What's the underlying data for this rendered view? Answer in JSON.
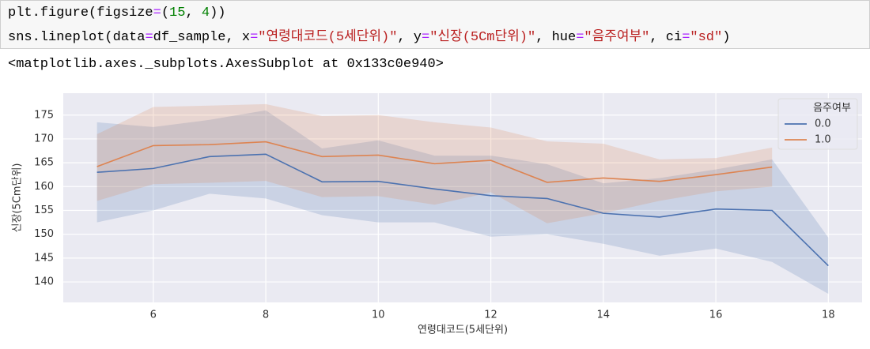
{
  "code": {
    "lines": [
      [
        {
          "text": "plt.figure(figsize",
          "color": "#000000"
        },
        {
          "text": "=",
          "color": "#aa22ff"
        },
        {
          "text": "(",
          "color": "#000000"
        },
        {
          "text": "15",
          "color": "#008000"
        },
        {
          "text": ", ",
          "color": "#000000"
        },
        {
          "text": "4",
          "color": "#008000"
        },
        {
          "text": "))",
          "color": "#000000"
        }
      ],
      [
        {
          "text": "sns.lineplot(data",
          "color": "#000000"
        },
        {
          "text": "=",
          "color": "#aa22ff"
        },
        {
          "text": "df_sample, x",
          "color": "#000000"
        },
        {
          "text": "=",
          "color": "#aa22ff"
        },
        {
          "text": "\"연령대코드(5세단위)\"",
          "color": "#ba2121"
        },
        {
          "text": ", y",
          "color": "#000000"
        },
        {
          "text": "=",
          "color": "#aa22ff"
        },
        {
          "text": "\"신장(5Cm단위)\"",
          "color": "#ba2121"
        },
        {
          "text": ", hue",
          "color": "#000000"
        },
        {
          "text": "=",
          "color": "#aa22ff"
        },
        {
          "text": "\"음주여부\"",
          "color": "#ba2121"
        },
        {
          "text": ", ci",
          "color": "#000000"
        },
        {
          "text": "=",
          "color": "#aa22ff"
        },
        {
          "text": "\"sd\"",
          "color": "#ba2121"
        },
        {
          "text": ")",
          "color": "#000000"
        }
      ]
    ]
  },
  "output": "<matplotlib.axes._subplots.AxesSubplot at 0x133c0e940>",
  "chart_data": {
    "type": "line",
    "x_label": "연령대코드(5세단위)",
    "y_label": "신장(5Cm단위)",
    "legend_title": "음주여부",
    "legend": "upper right",
    "grid": true,
    "background": "#eaeaf2",
    "band_opacity": 0.2,
    "xlim": [
      4.4,
      18.6
    ],
    "xticks": [
      6,
      8,
      10,
      12,
      14,
      16,
      18
    ],
    "ylim": [
      135.7,
      179.6
    ],
    "yticks": [
      140,
      145,
      150,
      155,
      160,
      165,
      170,
      175
    ],
    "series": [
      {
        "name": "0.0",
        "color": "#4c72b0",
        "x": [
          5,
          6,
          7,
          8,
          9,
          10,
          11,
          12,
          13,
          14,
          15,
          16,
          17,
          18
        ],
        "values": [
          163.0,
          163.8,
          166.3,
          166.8,
          161.0,
          161.1,
          159.5,
          158.1,
          157.5,
          154.4,
          153.6,
          155.3,
          155.0,
          143.4
        ],
        "upper": [
          173.5,
          172.5,
          174,
          176,
          168,
          169.7,
          166.5,
          166.5,
          164.7,
          160.7,
          161.8,
          163.6,
          165.7,
          149.3
        ],
        "lower": [
          152.5,
          155,
          158.5,
          157.5,
          154,
          152.5,
          152.5,
          149.5,
          150,
          148,
          145.5,
          147,
          144.2,
          137.5
        ]
      },
      {
        "name": "1.0",
        "color": "#dd8452",
        "x": [
          5,
          6,
          7,
          8,
          9,
          10,
          11,
          12,
          13,
          14,
          15,
          16,
          17
        ],
        "values": [
          164.2,
          168.6,
          168.8,
          169.4,
          166.3,
          166.6,
          164.8,
          165.5,
          160.9,
          161.8,
          161.1,
          162.5,
          164.1
        ],
        "upper": [
          171,
          176.7,
          177,
          177.3,
          174.8,
          175,
          173.5,
          172.4,
          169.5,
          169,
          165.7,
          166,
          168.2
        ],
        "lower": [
          157,
          160.5,
          160.8,
          161.2,
          157.8,
          158,
          156.2,
          158.8,
          152.3,
          154.4,
          157,
          159,
          160
        ]
      }
    ]
  }
}
